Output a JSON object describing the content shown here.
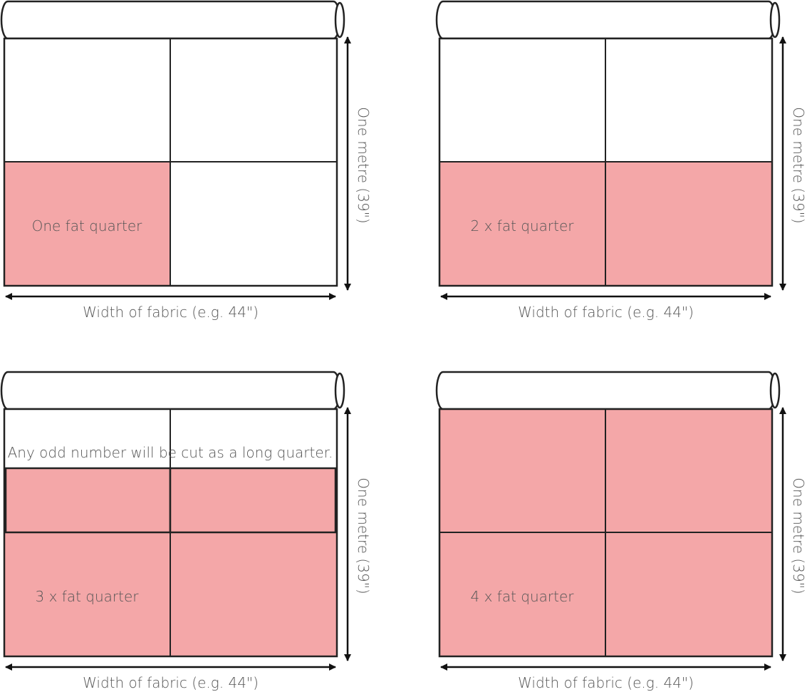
{
  "colors": {
    "cut_fill": "#f4a7a8",
    "uncut_fill": "#ffffff",
    "line": "#222222",
    "text": "#555555"
  },
  "panels": [
    {
      "id": "one",
      "quadrant_label": "One fat quarter",
      "label_cell": "bottom-left",
      "cut_cells": [
        "bottom-left"
      ],
      "note": "",
      "width_label": "Width of fabric (e.g. 44\")",
      "length_label": "One metre (39\")"
    },
    {
      "id": "two",
      "quadrant_label": "2 x fat quarter",
      "label_cell": "bottom-left",
      "cut_cells": [
        "bottom-left",
        "bottom-right"
      ],
      "note": "",
      "width_label": "Width of fabric (e.g. 44\")",
      "length_label": "One metre (39\")"
    },
    {
      "id": "three",
      "quadrant_label": "3 x fat quarter",
      "label_cell": "bottom-left",
      "cut_cells": [
        "bottom-left",
        "bottom-right",
        "long-quarter-left",
        "long-quarter-right"
      ],
      "note": "Any odd number will be cut as a long quarter.",
      "width_label": "Width of fabric (e.g. 44\")",
      "length_label": "One metre (39\")"
    },
    {
      "id": "four",
      "quadrant_label": "4 x fat quarter",
      "label_cell": "bottom-left",
      "cut_cells": [
        "top-left",
        "top-right",
        "bottom-left",
        "bottom-right"
      ],
      "note": "",
      "width_label": "Width of fabric (e.g. 44\")",
      "length_label": "One metre (39\")"
    }
  ]
}
